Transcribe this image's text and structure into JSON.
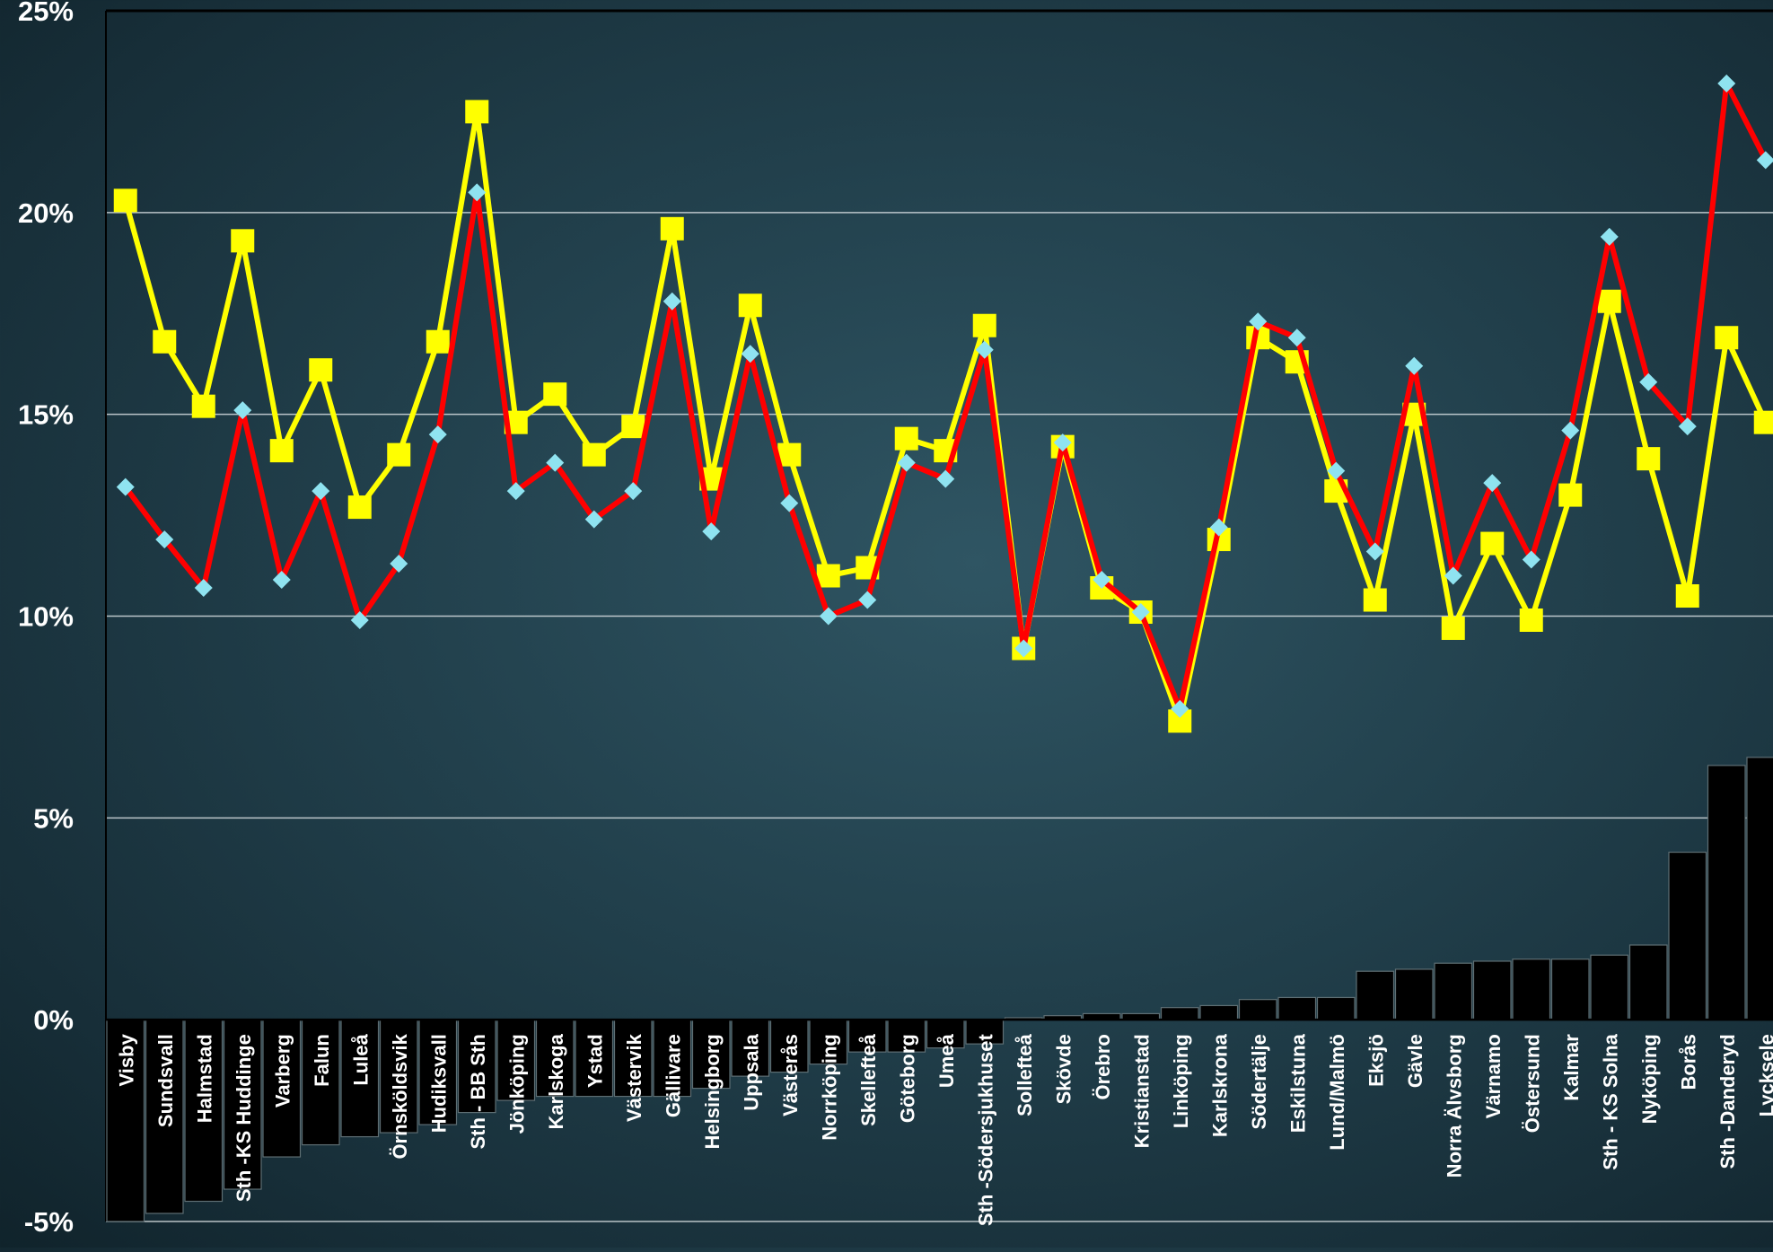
{
  "chart_data": {
    "type": "bar+line",
    "title": "",
    "xlabel": "",
    "ylabel": "",
    "ylim": [
      -5,
      25
    ],
    "y_ticks": [
      "-5%",
      "0%",
      "5%",
      "10%",
      "15%",
      "20%",
      "25%"
    ],
    "grid": true,
    "categories": [
      "Visby",
      "Sundsvall",
      "Halmstad",
      "Sth -KS Huddinge",
      "Varberg",
      "Falun",
      "Luleå",
      "Örnsköldsvik",
      "Hudiksvall",
      "Sth - BB Sth",
      "Jönköping",
      "Karlskoga",
      "Ystad",
      "Västervik",
      "Gällivare",
      "Helsingborg",
      "Uppsala",
      "Västerås",
      "Norrköping",
      "Skellefteå",
      "Göteborg",
      "Umeå",
      "Sth -Södersjukhuset",
      "Sollefteå",
      "Skövde",
      "Örebro",
      "Kristianstad",
      "Linköping",
      "Karlskrona",
      "Södertälje",
      "Eskilstuna",
      "Lund/Malmö",
      "Eksjö",
      "Gävle",
      "Norra Älvsborg",
      "Värnamo",
      "Östersund",
      "Kalmar",
      "Sth - KS Solna",
      "Nyköping",
      "Borås",
      "Sth -Danderyd",
      "Lycksele"
    ],
    "series": [
      {
        "type": "bar",
        "color": "#000000",
        "values": [
          -5.0,
          -4.8,
          -4.5,
          -4.2,
          -3.4,
          -3.1,
          -2.9,
          -2.8,
          -2.6,
          -2.3,
          -2.0,
          -1.9,
          -1.9,
          -1.9,
          -1.9,
          -1.7,
          -1.4,
          -1.3,
          -1.1,
          -0.8,
          -0.8,
          -0.7,
          -0.6,
          0.05,
          0.1,
          0.15,
          0.15,
          0.3,
          0.35,
          0.5,
          0.55,
          0.55,
          1.2,
          1.25,
          1.4,
          1.45,
          1.5,
          1.5,
          1.6,
          1.85,
          4.15,
          6.3,
          6.5
        ]
      },
      {
        "type": "line",
        "color": "#ffff00",
        "marker": "square",
        "values": [
          20.3,
          16.8,
          15.2,
          19.3,
          14.1,
          16.1,
          12.7,
          14.0,
          16.8,
          22.5,
          14.8,
          15.5,
          14.0,
          14.7,
          19.6,
          13.4,
          17.7,
          14.0,
          11.0,
          11.2,
          14.4,
          14.1,
          17.2,
          9.2,
          14.2,
          10.7,
          10.1,
          7.4,
          11.9,
          16.9,
          16.3,
          13.1,
          10.4,
          15.0,
          9.7,
          11.8,
          9.9,
          13.0,
          17.8,
          13.9,
          10.5,
          16.9,
          14.8
        ]
      },
      {
        "type": "line",
        "color": "#ff0000",
        "marker": "diamond",
        "marker_color": "#8fe3f0",
        "values": [
          13.2,
          11.9,
          10.7,
          15.1,
          10.9,
          13.1,
          9.9,
          11.3,
          14.5,
          20.5,
          13.1,
          13.8,
          12.4,
          13.1,
          17.8,
          12.1,
          16.5,
          12.8,
          10.0,
          10.4,
          13.8,
          13.4,
          16.6,
          9.2,
          14.3,
          10.9,
          10.1,
          7.7,
          12.2,
          17.3,
          16.9,
          13.6,
          11.6,
          16.2,
          11.0,
          13.3,
          11.4,
          14.6,
          19.4,
          15.8,
          14.7,
          23.2,
          21.3
        ]
      }
    ]
  }
}
